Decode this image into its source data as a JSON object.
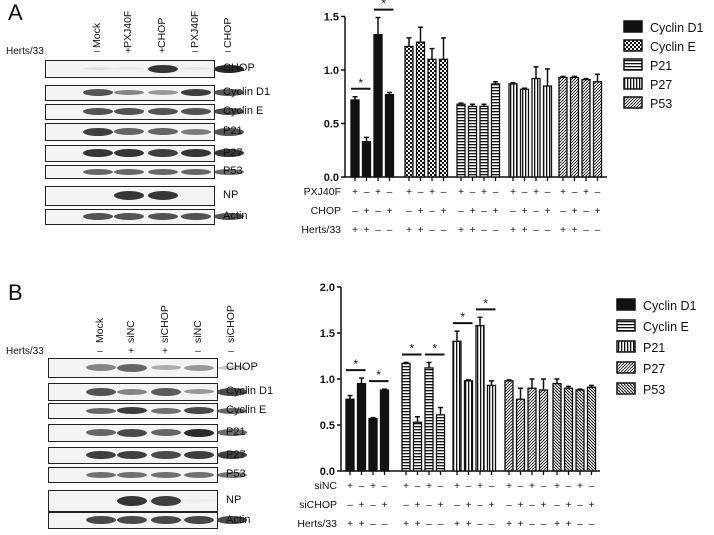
{
  "panels": {
    "A": {
      "letter": "A",
      "blot": {
        "lanes": [
          "Mock",
          "PXJ40F",
          "CHOP",
          "PXJ40F",
          "CHOP"
        ],
        "herts_label": "Herts/33",
        "herts_signs": [
          "–",
          "+",
          "+",
          "–",
          "–"
        ],
        "rows": [
          "CHOP",
          "Cyclin D1",
          "Cyclin E",
          "P21",
          "P27",
          "P53",
          "NP",
          "Actin"
        ]
      }
    },
    "B": {
      "letter": "B",
      "blot": {
        "lanes": [
          "Mock",
          "siNC",
          "siCHOP",
          "siNC",
          "siCHOP"
        ],
        "herts_label": "Herts/33",
        "herts_signs": [
          "–",
          "+",
          "+",
          "–",
          "–"
        ],
        "rows": [
          "CHOP",
          "Cyclin D1",
          "Cyclin E",
          "P21",
          "P27",
          "P53",
          "NP",
          "Actin"
        ]
      }
    }
  },
  "chart_data": [
    {
      "type": "bar",
      "title": "",
      "xlabel": "",
      "ylabel": "",
      "ylim": [
        0,
        1.5
      ],
      "yticks": [
        0.0,
        0.5,
        1.0,
        1.5
      ],
      "legend": [
        "Cyclin D1",
        "Cyclin E",
        "P21",
        "P27",
        "P53"
      ],
      "legend_position": "right",
      "condition_rows": [
        {
          "label": "PXJ40F",
          "signs": [
            "+",
            "–",
            "+",
            "–"
          ]
        },
        {
          "label": "CHOP",
          "signs": [
            "–",
            "+",
            "–",
            "+"
          ]
        },
        {
          "label": "Herts/33",
          "signs": [
            "+",
            "+",
            "–",
            "–"
          ]
        }
      ],
      "series": [
        {
          "name": "Cyclin D1",
          "values": [
            0.72,
            0.33,
            1.33,
            0.77
          ],
          "errors": [
            0.03,
            0.04,
            0.16,
            0.02
          ]
        },
        {
          "name": "Cyclin E",
          "values": [
            1.22,
            1.26,
            1.1,
            1.1
          ],
          "errors": [
            0.08,
            0.14,
            0.1,
            0.2
          ]
        },
        {
          "name": "P21",
          "values": [
            0.68,
            0.66,
            0.66,
            0.87
          ],
          "errors": [
            0.01,
            0.02,
            0.02,
            0.02
          ]
        },
        {
          "name": "P27",
          "values": [
            0.87,
            0.82,
            0.92,
            0.85
          ],
          "errors": [
            0.01,
            0.01,
            0.11,
            0.16
          ]
        },
        {
          "name": "P53",
          "values": [
            0.93,
            0.93,
            0.91,
            0.89
          ],
          "errors": [
            0.01,
            0.01,
            0.01,
            0.07
          ]
        }
      ],
      "significance": [
        {
          "series": "Cyclin D1",
          "bars": [
            0,
            1
          ],
          "label": "*"
        },
        {
          "series": "Cyclin D1",
          "bars": [
            2,
            3
          ],
          "label": "*"
        }
      ]
    },
    {
      "type": "bar",
      "title": "",
      "xlabel": "",
      "ylabel": "",
      "ylim": [
        0,
        2.0
      ],
      "yticks": [
        0.0,
        0.5,
        1.0,
        1.5,
        2.0
      ],
      "legend": [
        "Cyclin D1",
        "Cyclin E",
        "P21",
        "P27",
        "P53"
      ],
      "legend_position": "right",
      "condition_rows": [
        {
          "label": "siNC",
          "signs": [
            "+",
            "–",
            "+",
            "–"
          ]
        },
        {
          "label": "siCHOP",
          "signs": [
            "–",
            "+",
            "–",
            "+"
          ]
        },
        {
          "label": "Herts/33",
          "signs": [
            "+",
            "+",
            "–",
            "–"
          ]
        }
      ],
      "series": [
        {
          "name": "Cyclin D1",
          "values": [
            0.78,
            0.95,
            0.57,
            0.88
          ],
          "errors": [
            0.04,
            0.06,
            0.01,
            0.01
          ]
        },
        {
          "name": "Cyclin E",
          "values": [
            1.17,
            0.53,
            1.12,
            0.61
          ],
          "errors": [
            0.01,
            0.06,
            0.06,
            0.08
          ]
        },
        {
          "name": "P21",
          "values": [
            1.41,
            0.98,
            1.58,
            0.93
          ],
          "errors": [
            0.11,
            0.01,
            0.09,
            0.05
          ]
        },
        {
          "name": "P27",
          "values": [
            0.98,
            0.78,
            0.9,
            0.88
          ],
          "errors": [
            0.01,
            0.12,
            0.1,
            0.12
          ]
        },
        {
          "name": "P53",
          "values": [
            0.95,
            0.9,
            0.88,
            0.91
          ],
          "errors": [
            0.05,
            0.02,
            0.01,
            0.02
          ]
        }
      ],
      "significance": [
        {
          "series": "Cyclin D1",
          "bars": [
            0,
            1
          ],
          "label": "*"
        },
        {
          "series": "Cyclin D1",
          "bars": [
            2,
            3
          ],
          "label": "*"
        },
        {
          "series": "Cyclin E",
          "bars": [
            0,
            1
          ],
          "label": "*"
        },
        {
          "series": "Cyclin E",
          "bars": [
            2,
            3
          ],
          "label": "*"
        },
        {
          "series": "P21",
          "bars": [
            0,
            1
          ],
          "label": "*"
        },
        {
          "series": "P21",
          "bars": [
            2,
            3
          ],
          "label": "*"
        }
      ]
    }
  ]
}
